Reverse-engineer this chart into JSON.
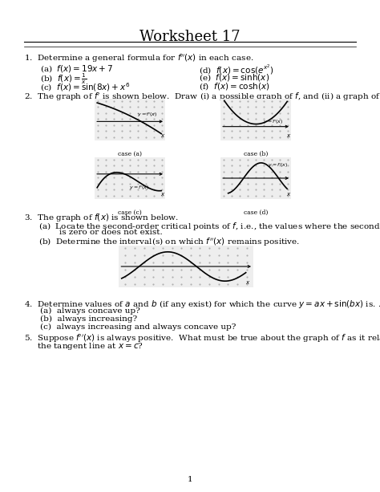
{
  "title": "Worksheet 17",
  "background": "#ffffff",
  "text_color": "#000000",
  "q1_text": "1.  Determine a general formula for $f''(x)$ in each case.",
  "q1_items_left": [
    "(a)  $f(x) = 19x + 7$",
    "(b)  $f(x) = \\frac{1}{x}$",
    "(c)  $f(x) = \\sin(8x) + x^6$"
  ],
  "q1_items_right": [
    "(d)  $f(x) = \\cos(e^{x^2})$",
    "(e)  $f(x) = \\sinh(x)$",
    "(f)  $f(x) = \\cosh(x)$"
  ],
  "q2_text": "2.  The graph of $f'$ is shown below.  Draw (i) a possible graph of $f$, and (ii) a graph of $f''$",
  "q3_text": "3.  The graph of $f(x)$ is shown below.",
  "q3a": "(a)  Locate the second-order critical points of $f$, i.e., the values where the second derivative",
  "q3a2": "        is zero or does not exist.",
  "q3b": "(b)  Determine the interval(s) on which $f''(x)$ remains positive.",
  "q4_text": "4.  Determine values of $a$ and $b$ (if any exist) for which the curve $y = ax + \\sin(bx)$ is. . .",
  "q4a": "(a)  always concave up?",
  "q4b": "(b)  always increasing?",
  "q4c": "(c)  always increasing and always concave up?",
  "q5_text": "5.  Suppose $f''(x)$ is always positive.  What must be true about the graph of $f$ as it relates to",
  "q5_text2": "     the tangent line at $x = c$?",
  "page_num": "1",
  "case_labels": [
    "case (a)",
    "case (b)",
    "case (c)",
    "case (d)"
  ]
}
